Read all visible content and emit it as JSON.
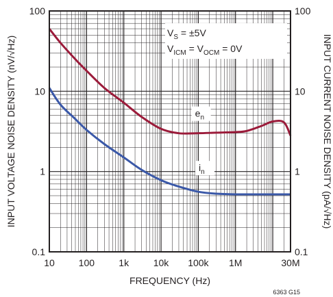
{
  "chart_data": {
    "type": "line",
    "scale": {
      "x": "log",
      "y_left": "log",
      "y_right": "log"
    },
    "xlim": [
      10,
      30000000
    ],
    "ylim": [
      0.1,
      100
    ],
    "grid": true,
    "xlabel": "FREQUENCY (Hz)",
    "ylabel_left": "INPUT VOLTAGE NOISE DENSITY (nV/√Hz)",
    "ylabel_right": "INPUT CURRENT NOISE DENSITY (pA/√Hz)",
    "x_ticks": [
      {
        "value": 10,
        "label": "10"
      },
      {
        "value": 100,
        "label": "100"
      },
      {
        "value": 1000,
        "label": "1k"
      },
      {
        "value": 10000,
        "label": "10k"
      },
      {
        "value": 100000,
        "label": "100k"
      },
      {
        "value": 1000000,
        "label": "1M"
      },
      {
        "value": 30000000,
        "label": "30M"
      }
    ],
    "y_ticks_left": [
      {
        "value": 100,
        "label": "100"
      },
      {
        "value": 10,
        "label": "10"
      },
      {
        "value": 1,
        "label": "1"
      },
      {
        "value": 0.1,
        "label": "0.1"
      }
    ],
    "y_ticks_right": [
      {
        "value": 100,
        "label": "100"
      },
      {
        "value": 10,
        "label": "10"
      },
      {
        "value": 1,
        "label": "1"
      },
      {
        "value": 0.1,
        "label": "0.1"
      }
    ],
    "conditions": {
      "line1": {
        "main": "V",
        "sub": "S",
        "rest": " = ±5V"
      },
      "line2": {
        "main": "V",
        "sub": "ICM",
        "mid": " = V",
        "sub2": "OCM",
        "rest": " = 0V"
      }
    },
    "figure_id": "6363 G15",
    "series": [
      {
        "name": "en",
        "label_main": "e",
        "label_sub": "n",
        "label_at": {
          "x": 120000,
          "y": 5.0
        },
        "color": "#9b1b3a",
        "x": [
          10,
          20,
          50,
          100,
          300,
          1000,
          3000,
          10000,
          30000,
          100000,
          300000,
          1000000,
          2000000,
          5000000,
          10000000,
          20000000,
          30000000
        ],
        "y": [
          60,
          40,
          25,
          18,
          11,
          7.2,
          4.8,
          3.4,
          3.0,
          3.0,
          3.05,
          3.1,
          3.2,
          3.7,
          4.2,
          4.1,
          2.8
        ]
      },
      {
        "name": "in",
        "label_main": "i",
        "label_sub": "n",
        "label_at": {
          "x": 150000,
          "y": 1.05
        },
        "color": "#3a58a8",
        "x": [
          10,
          20,
          50,
          100,
          300,
          1000,
          3000,
          10000,
          30000,
          100000,
          300000,
          1000000,
          3000000,
          10000000,
          30000000
        ],
        "y": [
          11,
          6.8,
          4.5,
          3.3,
          2.2,
          1.5,
          1.05,
          0.78,
          0.65,
          0.56,
          0.53,
          0.52,
          0.52,
          0.52,
          0.52
        ]
      }
    ]
  }
}
